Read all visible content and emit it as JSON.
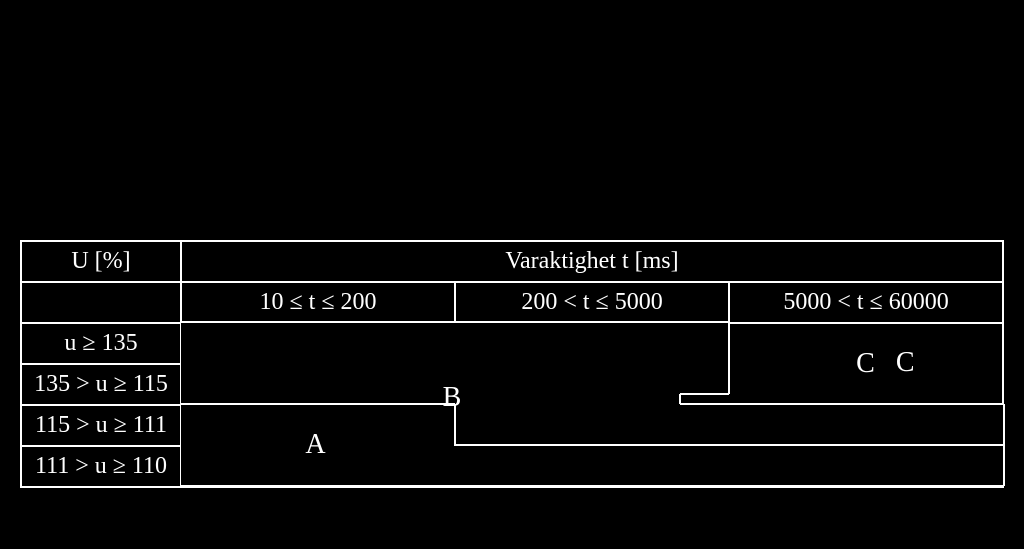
{
  "table": {
    "header": {
      "u_col": "U [%]",
      "duration_header": "Varaktighet t [ms]",
      "duration_ranges": [
        "10 ≤ t ≤ 200",
        "200 < t ≤ 5000",
        "5000 < t ≤ 60000"
      ]
    },
    "u_rows": [
      "u ≥ 135",
      "135 > u ≥ 115",
      "115 > u ≥ 111",
      "111 > u ≥ 110"
    ],
    "regions": {
      "A": "A",
      "B": "B",
      "C": "C"
    },
    "colors": {
      "background": "#000000",
      "border": "#ffffff",
      "text": "#ffffff"
    },
    "font_family": "Book Antiqua / Palatino serif",
    "font_size_pt": 18
  }
}
